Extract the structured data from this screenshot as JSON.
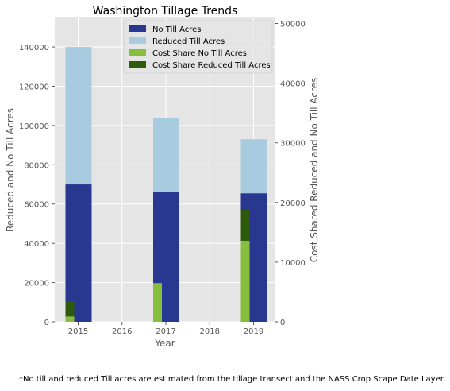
{
  "chart_data": {
    "type": "bar",
    "title": "Washington Tillage Trends",
    "xlabel": "Year",
    "ylabel": "Reduced and No Till Acres",
    "ylabel_right": "Cost Shared Reduced and No Till Acres",
    "x_ticks": [
      "2015",
      "2016",
      "2017",
      "2018",
      "2019"
    ],
    "y_ticks": [
      "0",
      "20000",
      "40000",
      "60000",
      "80000",
      "100000",
      "120000",
      "140000"
    ],
    "y_right_ticks": [
      "0",
      "10000",
      "20000",
      "30000",
      "40000",
      "50000"
    ],
    "ylim": [
      0,
      155000
    ],
    "ylim_right": [
      0,
      51000
    ],
    "grid": true,
    "legend_position": "top-right",
    "categories": [
      "2015",
      "2017",
      "2019"
    ],
    "series": [
      {
        "name": "No Till Acres",
        "axis": "left",
        "color": "#283891",
        "values": [
          70000,
          66000,
          65500
        ]
      },
      {
        "name": "Reduced Till Acres",
        "axis": "left",
        "color": "#a9cbdf",
        "values": [
          70000,
          38000,
          27500
        ]
      },
      {
        "name": "Cost Share No Till Acres",
        "axis": "right",
        "color": "#86bf3e",
        "values": [
          900,
          6500,
          13600
        ]
      },
      {
        "name": "Cost Share Reduced Till Acres",
        "axis": "right",
        "color": "#2e5a0b",
        "values": [
          2500,
          0,
          5200
        ]
      }
    ]
  },
  "footnote": "*No till and reduced Till acres are estimated from the tillage transect and the NASS Crop Scape Date Layer."
}
